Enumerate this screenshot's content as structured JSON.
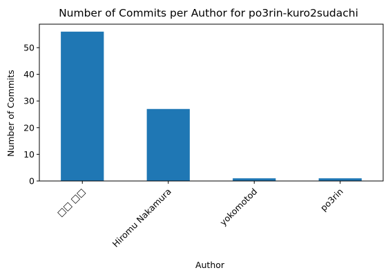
{
  "chart_data": {
    "type": "bar",
    "title": "Number of Commits per Author for po3rin-kuro2sudachi",
    "xlabel": "Author",
    "ylabel": "Number of Commits",
    "categories": [
      "□□ □□",
      "Hiromu Nakamura",
      "yokomotod",
      "po3rin"
    ],
    "values": [
      56,
      27,
      1,
      1
    ],
    "ylim": [
      0,
      58.8
    ],
    "yticks": [
      0,
      10,
      20,
      30,
      40,
      50
    ],
    "grid": false,
    "bar_color": "#1f77b4"
  }
}
